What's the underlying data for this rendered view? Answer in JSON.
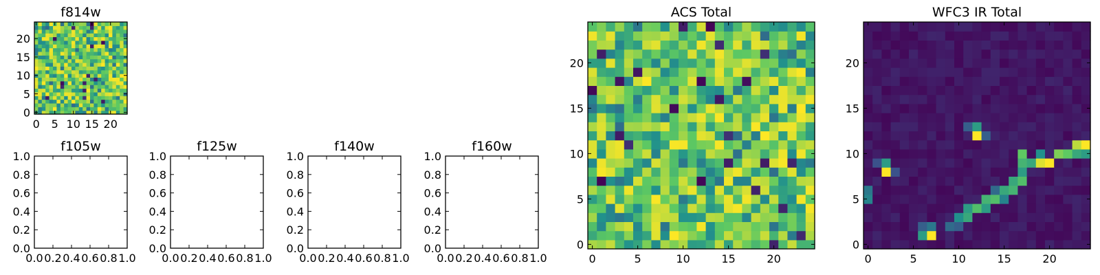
{
  "figure": {
    "background": "#ffffff"
  },
  "colormap": {
    "name": "viridis",
    "stops": [
      "#440154",
      "#3b528b",
      "#21918c",
      "#5ec962",
      "#fde725"
    ]
  },
  "chart_data": [
    {
      "id": "f814w",
      "type": "heatmap",
      "title": "f814w",
      "grid_size": 25,
      "extent": [
        -0.5,
        24.5,
        -0.5,
        24.5
      ],
      "xticks": [
        0,
        5,
        10,
        15,
        20
      ],
      "yticks": [
        0,
        5,
        10,
        15,
        20
      ],
      "pattern": "noise",
      "seed": 11,
      "vmin": 0.0,
      "vmax": 1.0
    },
    {
      "id": "f105w",
      "type": "empty",
      "title": "f105w",
      "xlim": [
        0.0,
        1.0
      ],
      "ylim": [
        0.0,
        1.0
      ],
      "xticks": [
        "0.0",
        "0.2",
        "0.4",
        "0.6",
        "0.8",
        "1.0"
      ],
      "yticks": [
        "0.0",
        "0.2",
        "0.4",
        "0.6",
        "0.8",
        "1.0"
      ]
    },
    {
      "id": "f125w",
      "type": "empty",
      "title": "f125w",
      "xlim": [
        0.0,
        1.0
      ],
      "ylim": [
        0.0,
        1.0
      ],
      "xticks": [
        "0.0",
        "0.2",
        "0.4",
        "0.6",
        "0.8",
        "1.0"
      ],
      "yticks": [
        "0.0",
        "0.2",
        "0.4",
        "0.6",
        "0.8",
        "1.0"
      ]
    },
    {
      "id": "f140w",
      "type": "empty",
      "title": "f140w",
      "xlim": [
        0.0,
        1.0
      ],
      "ylim": [
        0.0,
        1.0
      ],
      "xticks": [
        "0.0",
        "0.2",
        "0.4",
        "0.6",
        "0.8",
        "1.0"
      ],
      "yticks": [
        "0.0",
        "0.2",
        "0.4",
        "0.6",
        "0.8",
        "1.0"
      ]
    },
    {
      "id": "f160w",
      "type": "empty",
      "title": "f160w",
      "xlim": [
        0.0,
        1.0
      ],
      "ylim": [
        0.0,
        1.0
      ],
      "xticks": [
        "0.0",
        "0.2",
        "0.4",
        "0.6",
        "0.8",
        "1.0"
      ],
      "yticks": [
        "0.0",
        "0.2",
        "0.4",
        "0.6",
        "0.8",
        "1.0"
      ]
    },
    {
      "id": "acs-total",
      "type": "heatmap",
      "title": "ACS Total",
      "grid_size": 25,
      "extent": [
        -0.5,
        24.5,
        -0.5,
        24.5
      ],
      "xticks": [
        0,
        5,
        10,
        15,
        20
      ],
      "yticks": [
        0,
        5,
        10,
        15,
        20
      ],
      "pattern": "noise",
      "seed": 27,
      "vmin": 0.0,
      "vmax": 1.0
    },
    {
      "id": "wfc3-ir-total",
      "type": "heatmap",
      "title": "WFC3 IR Total",
      "grid_size": 25,
      "extent": [
        -0.5,
        24.5,
        -0.5,
        24.5
      ],
      "xticks": [
        0,
        5,
        10,
        15,
        20
      ],
      "yticks": [
        0,
        5,
        10,
        15,
        20
      ],
      "pattern": "sources",
      "seed": 5,
      "vmin": 0.0,
      "vmax": 1.0,
      "bright_pixels": [
        {
          "x": 7,
          "y": 1,
          "v": 1.0
        },
        {
          "x": 6,
          "y": 1,
          "v": 0.55
        },
        {
          "x": 7,
          "y": 2,
          "v": 0.4
        },
        {
          "x": 6,
          "y": 2,
          "v": 0.3
        },
        {
          "x": 2,
          "y": 8,
          "v": 1.0
        },
        {
          "x": 2,
          "y": 9,
          "v": 0.55
        },
        {
          "x": 3,
          "y": 8,
          "v": 0.25
        },
        {
          "x": 1,
          "y": 9,
          "v": 0.25
        },
        {
          "x": 0,
          "y": 5,
          "v": 0.45
        },
        {
          "x": 0,
          "y": 6,
          "v": 0.4
        },
        {
          "x": 12,
          "y": 12,
          "v": 1.0
        },
        {
          "x": 12,
          "y": 13,
          "v": 0.55
        },
        {
          "x": 13,
          "y": 12,
          "v": 0.3
        },
        {
          "x": 11,
          "y": 13,
          "v": 0.3
        },
        {
          "x": 10,
          "y": 3,
          "v": 0.5
        },
        {
          "x": 11,
          "y": 3,
          "v": 0.6
        },
        {
          "x": 11,
          "y": 4,
          "v": 0.55
        },
        {
          "x": 12,
          "y": 4,
          "v": 0.7
        },
        {
          "x": 13,
          "y": 4,
          "v": 0.55
        },
        {
          "x": 13,
          "y": 5,
          "v": 0.65
        },
        {
          "x": 14,
          "y": 5,
          "v": 0.7
        },
        {
          "x": 15,
          "y": 6,
          "v": 0.6
        },
        {
          "x": 16,
          "y": 6,
          "v": 0.65
        },
        {
          "x": 16,
          "y": 7,
          "v": 0.6
        },
        {
          "x": 17,
          "y": 7,
          "v": 0.7
        },
        {
          "x": 17,
          "y": 8,
          "v": 0.55
        },
        {
          "x": 17,
          "y": 9,
          "v": 0.65
        },
        {
          "x": 17,
          "y": 10,
          "v": 0.75
        },
        {
          "x": 18,
          "y": 9,
          "v": 0.6
        },
        {
          "x": 19,
          "y": 9,
          "v": 0.95
        },
        {
          "x": 20,
          "y": 9,
          "v": 1.0
        },
        {
          "x": 21,
          "y": 10,
          "v": 0.8
        },
        {
          "x": 22,
          "y": 10,
          "v": 0.75
        },
        {
          "x": 23,
          "y": 10,
          "v": 0.6
        },
        {
          "x": 23,
          "y": 11,
          "v": 0.9
        },
        {
          "x": 24,
          "y": 11,
          "v": 1.0
        },
        {
          "x": 24,
          "y": 10,
          "v": 0.55
        },
        {
          "x": 9,
          "y": 2,
          "v": 0.35
        },
        {
          "x": 10,
          "y": 2,
          "v": 0.3
        },
        {
          "x": 15,
          "y": 5,
          "v": 0.45
        },
        {
          "x": 19,
          "y": 10,
          "v": 0.5
        },
        {
          "x": 14,
          "y": 6,
          "v": 0.35
        }
      ]
    }
  ]
}
